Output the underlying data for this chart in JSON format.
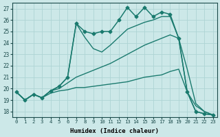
{
  "xlabel": "Humidex (Indice chaleur)",
  "bg_color": "#cce8e8",
  "line_color": "#1a7a6e",
  "grid_color": "#aed4d4",
  "xlim": [
    -0.5,
    23.5
  ],
  "ylim": [
    17.5,
    27.5
  ],
  "yticks": [
    18,
    19,
    20,
    21,
    22,
    23,
    24,
    25,
    26,
    27
  ],
  "xticks": [
    0,
    1,
    2,
    3,
    4,
    5,
    6,
    7,
    8,
    9,
    10,
    11,
    12,
    13,
    14,
    15,
    16,
    17,
    18,
    19,
    20,
    21,
    22,
    23
  ],
  "lines": [
    {
      "x": [
        0,
        1,
        2,
        3,
        4,
        5,
        6,
        7,
        8,
        9,
        10,
        11,
        12,
        13,
        14,
        15,
        16,
        17,
        18,
        19,
        20,
        21,
        22,
        23
      ],
      "y": [
        19.7,
        19.0,
        19.5,
        19.2,
        19.8,
        20.2,
        21.0,
        25.7,
        25.0,
        24.8,
        25.0,
        25.0,
        26.0,
        27.1,
        26.3,
        27.1,
        26.3,
        26.7,
        26.5,
        24.4,
        19.7,
        18.0,
        17.8,
        17.7
      ],
      "marker": "D",
      "markersize": 2.5,
      "linewidth": 1.1
    },
    {
      "x": [
        0,
        1,
        2,
        3,
        4,
        5,
        6,
        7,
        8,
        9,
        10,
        11,
        12,
        13,
        14,
        15,
        16,
        17,
        18,
        19,
        20,
        21,
        22,
        23
      ],
      "y": [
        19.7,
        19.0,
        19.5,
        19.2,
        19.8,
        20.2,
        21.0,
        25.7,
        24.5,
        23.5,
        23.2,
        23.8,
        24.5,
        25.2,
        25.5,
        25.8,
        26.0,
        26.3,
        26.3,
        24.4,
        19.7,
        18.0,
        17.8,
        17.7
      ],
      "marker": null,
      "markersize": 0,
      "linewidth": 1.0
    },
    {
      "x": [
        0,
        1,
        2,
        3,
        4,
        5,
        6,
        7,
        8,
        9,
        10,
        11,
        12,
        13,
        14,
        15,
        16,
        17,
        18,
        19,
        20,
        21,
        22,
        23
      ],
      "y": [
        19.7,
        19.0,
        19.5,
        19.2,
        19.8,
        20.0,
        20.5,
        21.0,
        21.3,
        21.6,
        21.9,
        22.2,
        22.6,
        23.0,
        23.4,
        23.8,
        24.1,
        24.4,
        24.7,
        24.4,
        21.7,
        18.7,
        18.0,
        17.7
      ],
      "marker": null,
      "markersize": 0,
      "linewidth": 1.0
    },
    {
      "x": [
        0,
        1,
        2,
        3,
        4,
        5,
        6,
        7,
        8,
        9,
        10,
        11,
        12,
        13,
        14,
        15,
        16,
        17,
        18,
        19,
        20,
        21,
        22,
        23
      ],
      "y": [
        19.7,
        19.0,
        19.5,
        19.2,
        19.6,
        19.8,
        19.9,
        20.1,
        20.1,
        20.2,
        20.3,
        20.4,
        20.5,
        20.6,
        20.8,
        21.0,
        21.1,
        21.2,
        21.5,
        21.7,
        19.7,
        18.5,
        18.0,
        17.7
      ],
      "marker": null,
      "markersize": 0,
      "linewidth": 1.0
    }
  ]
}
